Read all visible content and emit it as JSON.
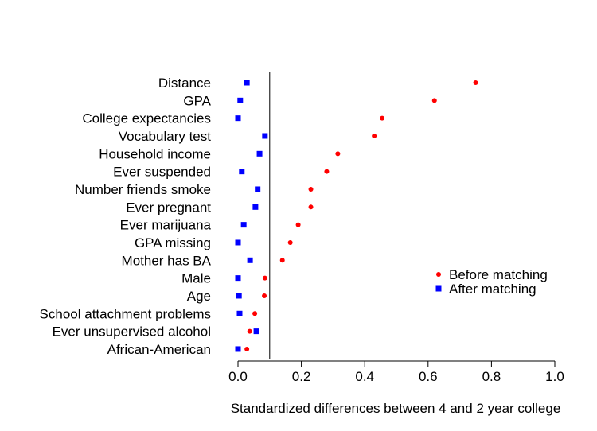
{
  "chart_data": {
    "type": "scatter",
    "title": "",
    "xlabel": "Standardized differences between 4 and 2 year college",
    "ylabel": "",
    "xlim": [
      0,
      1.0
    ],
    "xticks": [
      0.0,
      0.2,
      0.4,
      0.6,
      0.8,
      1.0
    ],
    "xtick_labels": [
      "0.0",
      "0.2",
      "0.4",
      "0.6",
      "0.8",
      "1.0"
    ],
    "reference_line_x": 0.1,
    "categories": [
      "Distance",
      "GPA",
      "College expectancies",
      "Vocabulary test",
      "Household income",
      "Ever suspended",
      "Number friends smoke",
      "Ever pregnant",
      "Ever marijuana",
      "GPA missing",
      "Mother has BA",
      "Male",
      "Age",
      "School attachment problems",
      "Ever unsupervised alcohol",
      "African-American"
    ],
    "series": [
      {
        "name": "Before matching",
        "marker": "circle",
        "color": "#ff0000",
        "values": [
          0.75,
          0.62,
          0.455,
          0.43,
          0.315,
          0.28,
          0.23,
          0.23,
          0.19,
          0.165,
          0.14,
          0.085,
          0.083,
          0.053,
          0.037,
          0.028
        ]
      },
      {
        "name": "After matching",
        "marker": "square",
        "color": "#0000ff",
        "values": [
          0.028,
          0.007,
          0.0,
          0.085,
          0.068,
          0.012,
          0.062,
          0.055,
          0.018,
          0.0,
          0.038,
          0.0,
          0.003,
          0.005,
          0.058,
          0.0
        ]
      }
    ],
    "legend_position": "right"
  }
}
